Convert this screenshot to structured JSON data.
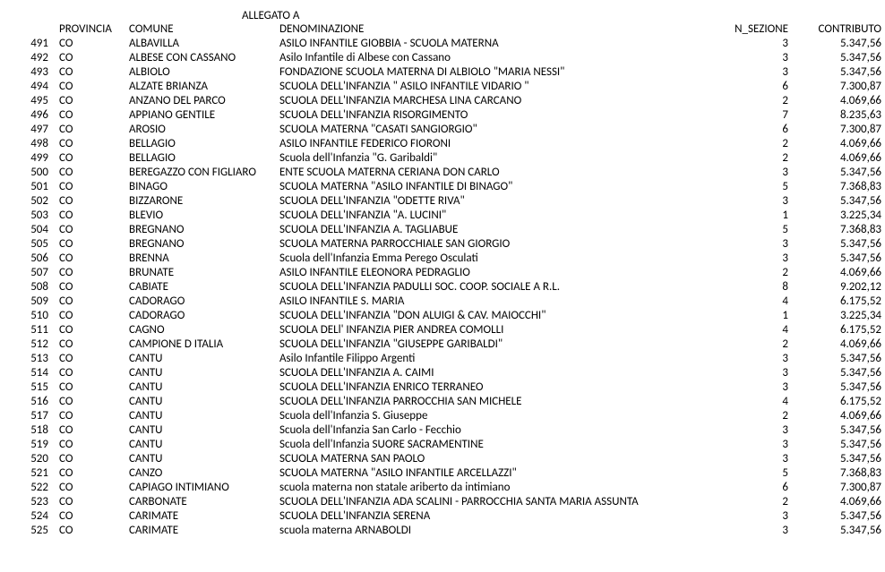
{
  "title": "ALLEGATO A",
  "headers": {
    "provincia": "PROVINCIA",
    "comune": "COMUNE",
    "denominazione": "DENOMINAZIONE",
    "n_sezione": "N_SEZIONE",
    "contributo": "CONTRIBUTO"
  },
  "rows": [
    {
      "idx": "491",
      "prov": "CO",
      "com": "ALBAVILLA",
      "den": "ASILO INFANTILE GIOBBIA - SCUOLA MATERNA",
      "sez": "3",
      "con": "5.347,56"
    },
    {
      "idx": "492",
      "prov": "CO",
      "com": "ALBESE CON CASSANO",
      "den": "Asilo Infantile di Albese con Cassano",
      "sez": "3",
      "con": "5.347,56"
    },
    {
      "idx": "493",
      "prov": "CO",
      "com": "ALBIOLO",
      "den": "FONDAZIONE SCUOLA MATERNA DI ALBIOLO \"MARIA NESSI\"",
      "sez": "3",
      "con": "5.347,56"
    },
    {
      "idx": "494",
      "prov": "CO",
      "com": "ALZATE BRIANZA",
      "den": "SCUOLA DELL'INFANZIA \" ASILO INFANTILE VIDARIO \"",
      "sez": "6",
      "con": "7.300,87"
    },
    {
      "idx": "495",
      "prov": "CO",
      "com": "ANZANO DEL PARCO",
      "den": "SCUOLA DELL'INFANZIA MARCHESA LINA CARCANO",
      "sez": "2",
      "con": "4.069,66"
    },
    {
      "idx": "496",
      "prov": "CO",
      "com": "APPIANO GENTILE",
      "den": "SCUOLA DELL'INFANZIA RISORGIMENTO",
      "sez": "7",
      "con": "8.235,63"
    },
    {
      "idx": "497",
      "prov": "CO",
      "com": "AROSIO",
      "den": "SCUOLA MATERNA \"CASATI SANGIORGIO\"",
      "sez": "6",
      "con": "7.300,87"
    },
    {
      "idx": "498",
      "prov": "CO",
      "com": "BELLAGIO",
      "den": "ASILO INFANTILE FEDERICO FIORONI",
      "sez": "2",
      "con": "4.069,66"
    },
    {
      "idx": "499",
      "prov": "CO",
      "com": "BELLAGIO",
      "den": "Scuola dell'Infanzia \"G. Garibaldi\"",
      "sez": "2",
      "con": "4.069,66"
    },
    {
      "idx": "500",
      "prov": "CO",
      "com": "BEREGAZZO CON FIGLIARO",
      "den": "ENTE SCUOLA MATERNA CERIANA DON CARLO",
      "sez": "3",
      "con": "5.347,56"
    },
    {
      "idx": "501",
      "prov": "CO",
      "com": "BINAGO",
      "den": "SCUOLA MATERNA \"ASILO INFANTILE DI BINAGO\"",
      "sez": "5",
      "con": "7.368,83"
    },
    {
      "idx": "502",
      "prov": "CO",
      "com": "BIZZARONE",
      "den": "SCUOLA DELL'INFANZIA \"ODETTE RIVA\"",
      "sez": "3",
      "con": "5.347,56"
    },
    {
      "idx": "503",
      "prov": "CO",
      "com": "BLEVIO",
      "den": "SCUOLA DELL'INFANZIA \"A. LUCINI\"",
      "sez": "1",
      "con": "3.225,34"
    },
    {
      "idx": "504",
      "prov": "CO",
      "com": "BREGNANO",
      "den": "SCUOLA DELL'INFANZIA A. TAGLIABUE",
      "sez": "5",
      "con": "7.368,83"
    },
    {
      "idx": "505",
      "prov": "CO",
      "com": "BREGNANO",
      "den": "SCUOLA MATERNA PARROCCHIALE SAN GIORGIO",
      "sez": "3",
      "con": "5.347,56"
    },
    {
      "idx": "506",
      "prov": "CO",
      "com": "BRENNA",
      "den": "Scuola dell'Infanzia Emma Perego Osculati",
      "sez": "3",
      "con": "5.347,56"
    },
    {
      "idx": "507",
      "prov": "CO",
      "com": "BRUNATE",
      "den": "ASILO INFANTILE ELEONORA PEDRAGLIO",
      "sez": "2",
      "con": "4.069,66"
    },
    {
      "idx": "508",
      "prov": "CO",
      "com": "CABIATE",
      "den": "SCUOLA DELL'INFANZIA PADULLI SOC. COOP. SOCIALE A R.L.",
      "sez": "8",
      "con": "9.202,12"
    },
    {
      "idx": "509",
      "prov": "CO",
      "com": "CADORAGO",
      "den": "ASILO INFANTILE S. MARIA",
      "sez": "4",
      "con": "6.175,52"
    },
    {
      "idx": "510",
      "prov": "CO",
      "com": "CADORAGO",
      "den": "SCUOLA DELL'INFANZIA \"DON ALUIGI & CAV. MAIOCCHI\"",
      "sez": "1",
      "con": "3.225,34"
    },
    {
      "idx": "511",
      "prov": "CO",
      "com": "CAGNO",
      "den": "SCUOLA DELl' INFANZIA PIER ANDREA COMOLLI",
      "sez": "4",
      "con": "6.175,52"
    },
    {
      "idx": "512",
      "prov": "CO",
      "com": "CAMPIONE D ITALIA",
      "den": "SCUOLA DELL'INFANZIA \"GIUSEPPE GARIBALDI\"",
      "sez": "2",
      "con": "4.069,66"
    },
    {
      "idx": "513",
      "prov": "CO",
      "com": "CANTU",
      "den": "Asilo Infantile Filippo Argenti",
      "sez": "3",
      "con": "5.347,56"
    },
    {
      "idx": "514",
      "prov": "CO",
      "com": "CANTU",
      "den": "SCUOLA DELL'INFANZIA A. CAIMI",
      "sez": "3",
      "con": "5.347,56"
    },
    {
      "idx": "515",
      "prov": "CO",
      "com": "CANTU",
      "den": "SCUOLA DELL'INFANZIA ENRICO TERRANEO",
      "sez": "3",
      "con": "5.347,56"
    },
    {
      "idx": "516",
      "prov": "CO",
      "com": "CANTU",
      "den": "SCUOLA DELL'INFANZIA PARROCCHIA SAN MICHELE",
      "sez": "4",
      "con": "6.175,52"
    },
    {
      "idx": "517",
      "prov": "CO",
      "com": "CANTU",
      "den": "Scuola dell'Infanzia S. Giuseppe",
      "sez": "2",
      "con": "4.069,66"
    },
    {
      "idx": "518",
      "prov": "CO",
      "com": "CANTU",
      "den": "Scuola dell'Infanzia San Carlo - Fecchio",
      "sez": "3",
      "con": "5.347,56"
    },
    {
      "idx": "519",
      "prov": "CO",
      "com": "CANTU",
      "den": "Scuola dell'Infanzia SUORE SACRAMENTINE",
      "sez": "3",
      "con": "5.347,56"
    },
    {
      "idx": "520",
      "prov": "CO",
      "com": "CANTU",
      "den": "SCUOLA MATERNA SAN PAOLO",
      "sez": "3",
      "con": "5.347,56"
    },
    {
      "idx": "521",
      "prov": "CO",
      "com": "CANZO",
      "den": "SCUOLA MATERNA \"ASILO INFANTILE ARCELLAZZI\"",
      "sez": "5",
      "con": "7.368,83"
    },
    {
      "idx": "522",
      "prov": "CO",
      "com": "CAPIAGO INTIMIANO",
      "den": "scuola materna non statale ariberto da intimiano",
      "sez": "6",
      "con": "7.300,87"
    },
    {
      "idx": "523",
      "prov": "CO",
      "com": "CARBONATE",
      "den": "SCUOLA DELL'INFANZIA ADA SCALINI - PARROCCHIA SANTA MARIA ASSUNTA",
      "sez": "2",
      "con": "4.069,66"
    },
    {
      "idx": "524",
      "prov": "CO",
      "com": "CARIMATE",
      "den": "SCUOLA DELL'INFANZIA SERENA",
      "sez": "3",
      "con": "5.347,56"
    },
    {
      "idx": "525",
      "prov": "CO",
      "com": "CARIMATE",
      "den": "scuola materna ARNABOLDI",
      "sez": "3",
      "con": "5.347,56"
    }
  ]
}
